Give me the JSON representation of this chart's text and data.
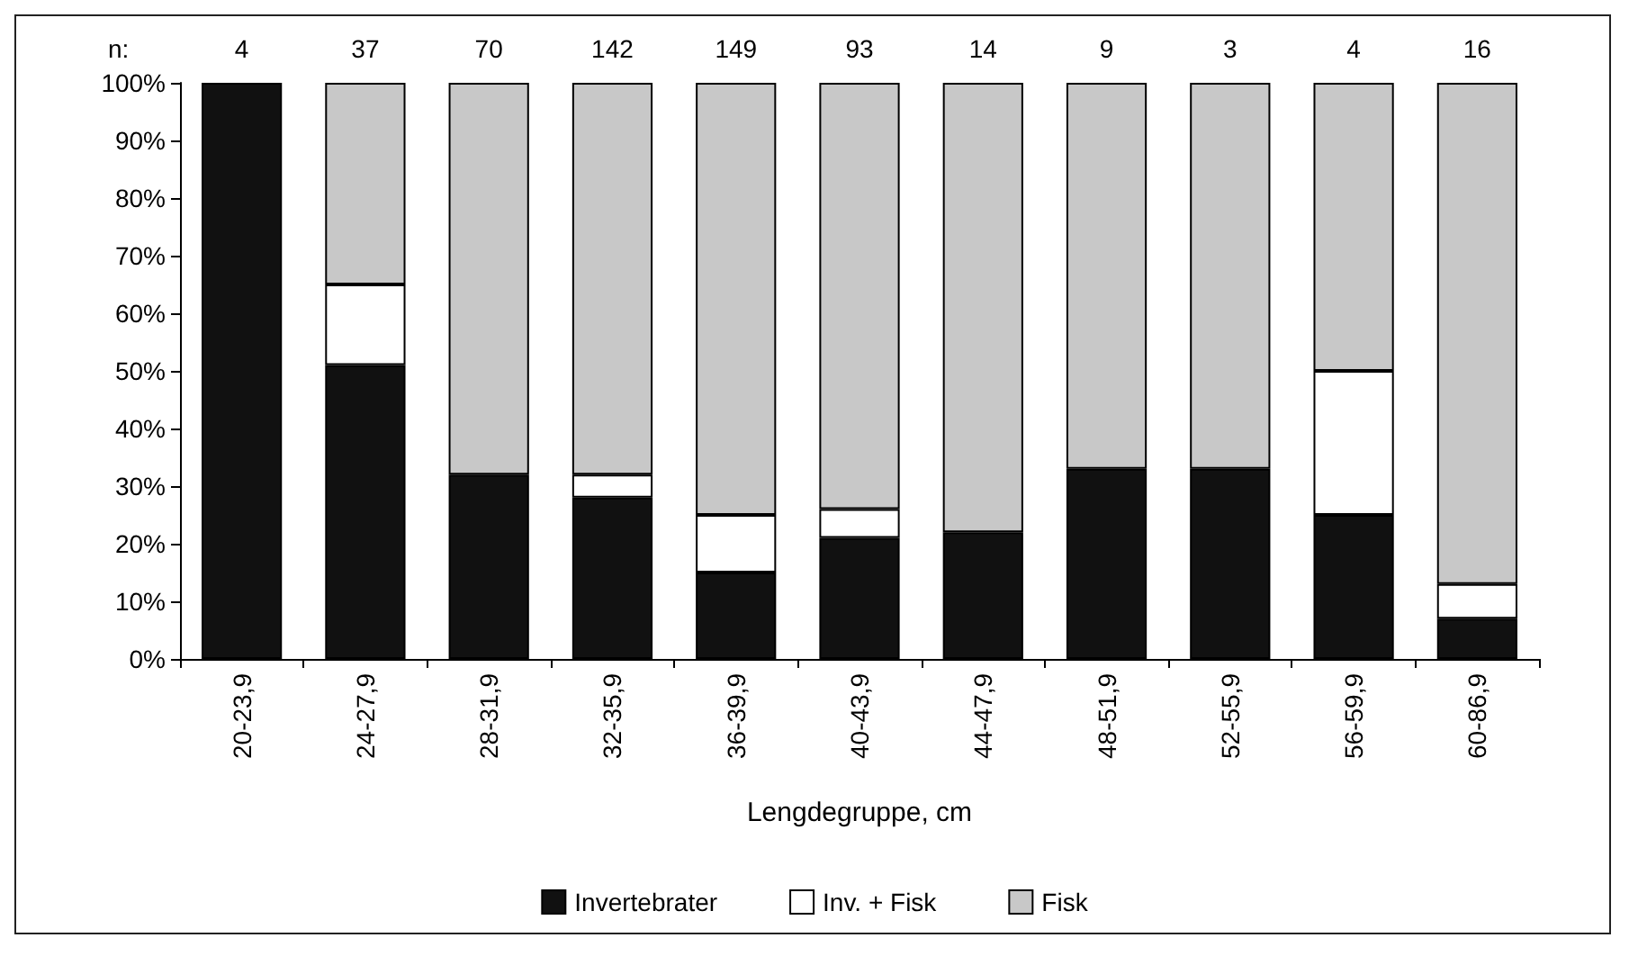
{
  "chart_data": {
    "type": "bar",
    "stacked": true,
    "xlabel": "Lengdegruppe, cm",
    "categories": [
      "20-23,9",
      "24-27,9",
      "28-31,9",
      "32-35,9",
      "36-39,9",
      "40-43,9",
      "44-47,9",
      "48-51,9",
      "52-55,9",
      "56-59,9",
      "60-86,9"
    ],
    "series": [
      {
        "name": "Invertebrater",
        "color": "#111111",
        "values": [
          100,
          51,
          32,
          28,
          15,
          21,
          22,
          33,
          33,
          25,
          7
        ]
      },
      {
        "name": "Inv. + Fisk",
        "color": "#ffffff",
        "values": [
          0,
          14,
          0,
          4,
          10,
          5,
          0,
          0,
          0,
          25,
          6
        ]
      },
      {
        "name": "Fisk",
        "color": "#c8c8c8",
        "values": [
          0,
          35,
          68,
          68,
          75,
          74,
          78,
          67,
          67,
          50,
          87
        ]
      }
    ],
    "ylim": [
      0,
      100
    ],
    "yticks": [
      {
        "value": 0,
        "label": "0%"
      },
      {
        "value": 10,
        "label": "10%"
      },
      {
        "value": 20,
        "label": "20%"
      },
      {
        "value": 30,
        "label": "30%"
      },
      {
        "value": 40,
        "label": "40%"
      },
      {
        "value": 50,
        "label": "50%"
      },
      {
        "value": 60,
        "label": "60%"
      },
      {
        "value": 70,
        "label": "70%"
      },
      {
        "value": 80,
        "label": "80%"
      },
      {
        "value": 90,
        "label": "90%"
      },
      {
        "value": 100,
        "label": "100%"
      }
    ],
    "annotations": [
      "n:",
      "4",
      "37",
      "70",
      "142",
      "149",
      "93",
      "14",
      "9",
      "3",
      "4",
      "16"
    ],
    "grid": false,
    "legend": "bottom"
  }
}
